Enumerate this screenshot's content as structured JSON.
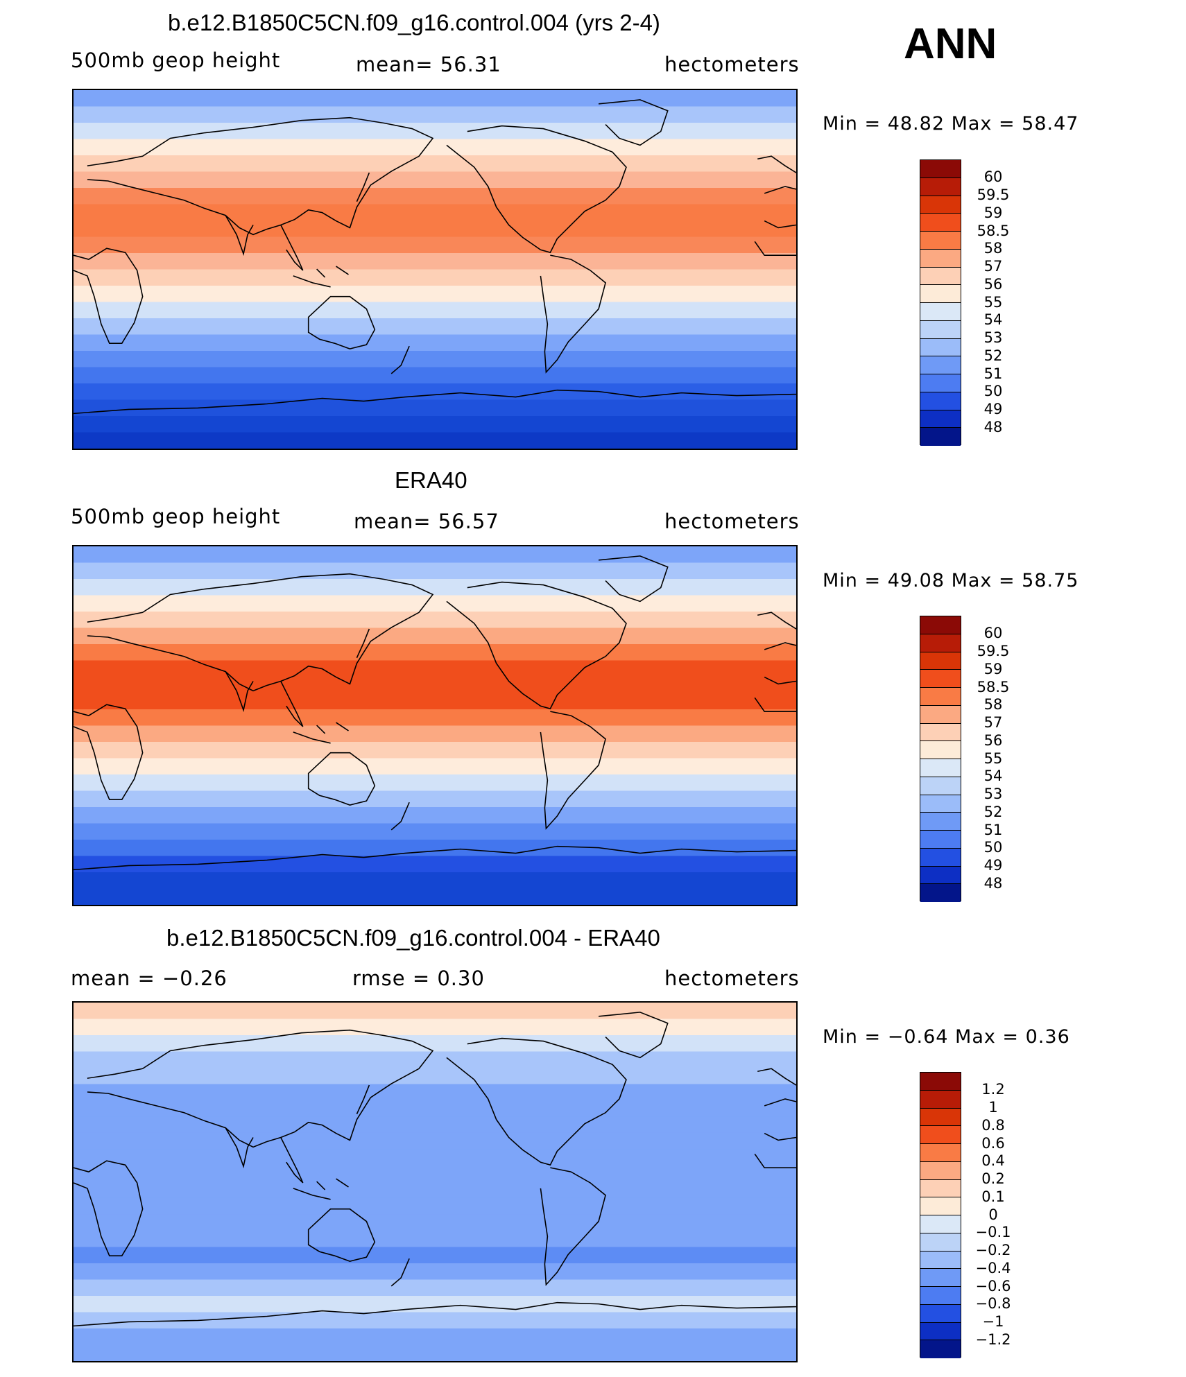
{
  "season": "ANN",
  "panels": [
    {
      "title": "b.e12.B1850C5CN.f09_g16.control.004 (yrs 2-4)",
      "left_label": "500mb  geop  height",
      "center_label": "mean=   56.31",
      "right_label": "hectometers",
      "minmax": "Min  =    48.82  Max  =    58.47",
      "colorbar_levels": [
        "60",
        "59.5",
        "59",
        "58.5",
        "58",
        "57",
        "56",
        "55",
        "54",
        "53",
        "52",
        "51",
        "50",
        "49",
        "48"
      ],
      "colorbar_colors": [
        "#8b0a06",
        "#b71c07",
        "#d93507",
        "#f04e1c",
        "#f97b45",
        "#fba982",
        "#fdd0b6",
        "#fdebd8",
        "#dbe8f7",
        "#bcd3f7",
        "#9bbcf9",
        "#6f9af6",
        "#4d7cf2",
        "#2350e2",
        "#0d2fc4",
        "#03158a"
      ],
      "band_colors": [
        "#7da5f9",
        "#a8c5fa",
        "#d2e2f8",
        "#feecdc",
        "#fdd0b6",
        "#fbb496",
        "#f98758",
        "#f97b45",
        "#f97b45",
        "#f98758",
        "#fbb496",
        "#fdd0b6",
        "#feecdc",
        "#d2e2f8",
        "#a8c5fa",
        "#7da5f9",
        "#5d8cf4",
        "#4376ee",
        "#2b5fe6",
        "#1f52dc",
        "#1446d2",
        "#0d39c6"
      ]
    },
    {
      "title": "ERA40",
      "left_label": "500mb  geop  height",
      "center_label": "mean=   56.57",
      "right_label": "hectometers",
      "minmax": "Min  =    49.08  Max  =    58.75",
      "colorbar_levels": [
        "60",
        "59.5",
        "59",
        "58.5",
        "58",
        "57",
        "56",
        "55",
        "54",
        "53",
        "52",
        "51",
        "50",
        "49",
        "48"
      ],
      "colorbar_colors": [
        "#8b0a06",
        "#b71c07",
        "#d93507",
        "#f04e1c",
        "#f97b45",
        "#fba982",
        "#fdd0b6",
        "#fdebd8",
        "#dbe8f7",
        "#bcd3f7",
        "#9bbcf9",
        "#6f9af6",
        "#4d7cf2",
        "#2350e2",
        "#0d2fc4",
        "#03158a"
      ],
      "band_colors": [
        "#7da5f9",
        "#a8c5fa",
        "#d2e2f8",
        "#feecdc",
        "#fdd0b6",
        "#fba982",
        "#f97b45",
        "#f04e1c",
        "#f04e1c",
        "#f04e1c",
        "#f97b45",
        "#fba982",
        "#fdd0b6",
        "#feecdc",
        "#d2e2f8",
        "#a8c5fa",
        "#7da5f9",
        "#5d8cf4",
        "#4376ee",
        "#2350e2",
        "#1446d2",
        "#1446d2"
      ]
    },
    {
      "title": "b.e12.B1850C5CN.f09_g16.control.004 - ERA40",
      "left_label": "mean  =    −0.26",
      "center_label": "rmse  =     0.30",
      "right_label": "hectometers",
      "minmax": "Min  =    −0.64  Max  =     0.36",
      "colorbar_levels": [
        "1.2",
        "1",
        "0.8",
        "0.6",
        "0.4",
        "0.2",
        "0.1",
        "0",
        "−0.1",
        "−0.2",
        "−0.4",
        "−0.6",
        "−0.8",
        "−1",
        "−1.2"
      ],
      "colorbar_colors": [
        "#8b0a06",
        "#b71c07",
        "#d93507",
        "#f04e1c",
        "#f97b45",
        "#fba982",
        "#fdd0b6",
        "#fdebd8",
        "#dbe8f7",
        "#bcd3f7",
        "#9bbcf9",
        "#6f9af6",
        "#4d7cf2",
        "#2350e2",
        "#0d2fc4",
        "#03158a"
      ],
      "band_colors": [
        "#fdd0b6",
        "#feecdc",
        "#d2e2f8",
        "#a8c5fa",
        "#a8c5fa",
        "#7da5f9",
        "#7da5f9",
        "#7da5f9",
        "#7da5f9",
        "#7da5f9",
        "#7da5f9",
        "#7da5f9",
        "#7da5f9",
        "#7da5f9",
        "#7da5f9",
        "#5d8cf4",
        "#7da5f9",
        "#a8c5fa",
        "#d2e2f8",
        "#a8c5fa",
        "#7da5f9",
        "#7da5f9"
      ]
    }
  ]
}
